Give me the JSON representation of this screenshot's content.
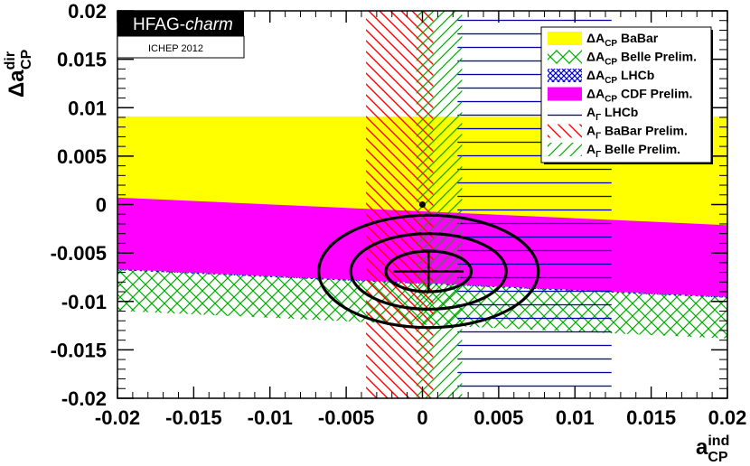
{
  "banner": {
    "title_main": "HFAG-",
    "title_italic": "charm",
    "conference": "ICHEP 2012"
  },
  "chart_data": {
    "type": "contour",
    "xlabel": {
      "main": "a",
      "sup": "ind",
      "sub": "CP"
    },
    "ylabel": {
      "prefix": "Δ",
      "main": "a",
      "sup": "dir",
      "sub": "CP"
    },
    "xlim": [
      -0.02,
      0.02
    ],
    "ylim": [
      -0.02,
      0.02
    ],
    "x_ticks": [
      "-0.02",
      "-0.015",
      "-0.01",
      "-0.005",
      "0",
      "0.005",
      "0.01",
      "0.015",
      "0.02"
    ],
    "x_tick_values": [
      -0.02,
      -0.015,
      -0.01,
      -0.005,
      0,
      0.005,
      0.01,
      0.015,
      0.02
    ],
    "y_ticks": [
      "-0.02",
      "-0.015",
      "-0.01",
      "-0.005",
      "0",
      "0.005",
      "0.01",
      "0.015",
      "0.02"
    ],
    "y_tick_values": [
      -0.02,
      -0.015,
      -0.01,
      -0.005,
      0,
      0.005,
      0.01,
      0.015,
      0.02
    ],
    "bands": [
      {
        "name": "ΔA_CP BaBar",
        "kind": "horizontal",
        "ymin": -0.0044,
        "ymax": 0.0091,
        "color": "#ffff00",
        "pattern": "solid"
      },
      {
        "name": "ΔA_CP Belle Prelim.",
        "kind": "diagonal",
        "offset_lo": -0.0124,
        "offset_hi": -0.0036,
        "slope": -0.0714,
        "color": "#00aa00",
        "pattern": "crosshatch"
      },
      {
        "name": "ΔA_CP LHCb",
        "kind": "diagonal",
        "offset_lo": -0.0082,
        "offset_hi": -0.0036,
        "slope": -0.0714,
        "color": "#0000cc",
        "pattern": "crosshatch"
      },
      {
        "name": "ΔA_CP CDF Prelim.",
        "kind": "diagonal",
        "offset_lo": -0.0081,
        "offset_hi": -0.0007,
        "slope": -0.0714,
        "color": "#ff00ff",
        "pattern": "solid"
      },
      {
        "name": "A_Γ LHCb",
        "kind": "vertical",
        "xmin": 0.0023,
        "xmax": 0.0124,
        "color": "#0000aa",
        "pattern": "horizontal-lines"
      },
      {
        "name": "A_Γ BaBar Prelim.",
        "kind": "vertical",
        "xmin": -0.0037,
        "xmax": 0.0007,
        "color": "#ff0000",
        "pattern": "hatch-back"
      },
      {
        "name": "A_Γ Belle Prelim.",
        "kind": "vertical",
        "xmin": -0.0004,
        "xmax": 0.0026,
        "color": "#00aa00",
        "pattern": "hatch-forward"
      }
    ],
    "ellipses": [
      {
        "cx": 0.0004,
        "cy": -0.0069,
        "rx": 0.0028,
        "ry": 0.0021
      },
      {
        "cx": 0.0004,
        "cy": -0.0069,
        "rx": 0.0051,
        "ry": 0.0039
      },
      {
        "cx": 0.0004,
        "cy": -0.0069,
        "rx": 0.0072,
        "ry": 0.0058
      }
    ],
    "best_fit": {
      "x": 0.0004,
      "y": -0.0069,
      "xerr": 0.0023,
      "yerr": 0.0021
    },
    "no_cpv_point": {
      "x": 0.0,
      "y": 0.0
    }
  },
  "legend": {
    "entries": [
      {
        "pre": "ΔA",
        "sub": "CP",
        "post": " BaBar",
        "swatch_fill": "#ffff00",
        "swatch_pattern": "solid"
      },
      {
        "pre": "ΔA",
        "sub": "CP",
        "post": " Belle Prelim.",
        "swatch_fill": "#00aa00",
        "swatch_pattern": "crosshatch"
      },
      {
        "pre": "ΔA",
        "sub": "CP",
        "post": " LHCb",
        "swatch_fill": "#0000cc",
        "swatch_pattern": "crosshatch"
      },
      {
        "pre": "ΔA",
        "sub": "CP",
        "post": " CDF Prelim.",
        "swatch_fill": "#ff00ff",
        "swatch_pattern": "solid"
      },
      {
        "pre": "A",
        "sub": "Γ",
        "post": " LHCb",
        "swatch_fill": "#0000aa",
        "swatch_pattern": "horizontal-lines"
      },
      {
        "pre": "A",
        "sub": "Γ",
        "post": " BaBar Prelim.",
        "swatch_fill": "#ff0000",
        "swatch_pattern": "hatch-back"
      },
      {
        "pre": "A",
        "sub": "Γ",
        "post": " Belle Prelim.",
        "swatch_fill": "#00aa00",
        "swatch_pattern": "hatch-forward"
      }
    ]
  }
}
